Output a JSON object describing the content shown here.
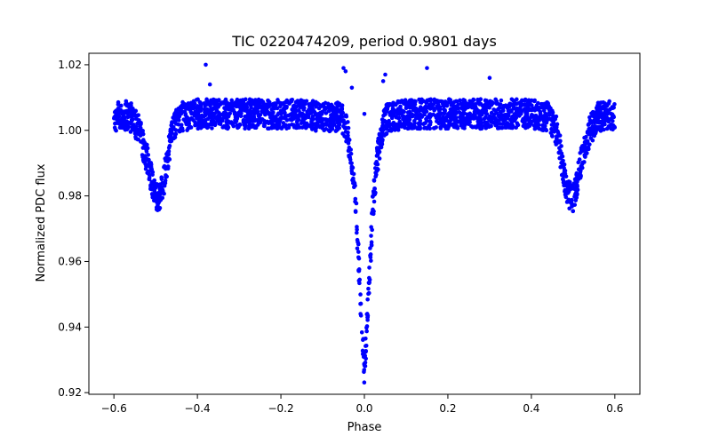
{
  "chart_data": {
    "type": "scatter",
    "title": "TIC 0220474209, period 0.9801 days",
    "xlabel": "Phase",
    "ylabel": "Normalized PDC flux",
    "xlim": [
      -0.66,
      0.66
    ],
    "ylim": [
      0.9195,
      1.0235
    ],
    "xticks": [
      -0.6,
      -0.4,
      -0.2,
      0.0,
      0.2,
      0.4,
      0.6
    ],
    "xtick_labels": [
      "−0.6",
      "−0.4",
      "−0.2",
      "0.0",
      "0.2",
      "0.4",
      "0.6"
    ],
    "yticks": [
      0.92,
      0.94,
      0.96,
      0.98,
      1.0,
      1.02
    ],
    "ytick_labels": [
      "0.92",
      "0.94",
      "0.96",
      "0.98",
      "1.00",
      "1.02"
    ],
    "grid": false,
    "legend": "none",
    "marker_color": "#0000ff",
    "series": [
      {
        "x": [
          -0.6,
          -0.58,
          -0.56,
          -0.54,
          -0.52,
          -0.51,
          -0.5,
          -0.49,
          -0.48,
          -0.47,
          -0.46,
          -0.44,
          -0.4,
          -0.35,
          -0.3,
          -0.25,
          -0.2,
          -0.15,
          -0.1,
          -0.06,
          -0.05,
          -0.04,
          -0.03,
          -0.02,
          -0.015,
          -0.01,
          -0.005,
          0.0,
          0.005,
          0.01,
          0.015,
          0.02,
          0.03,
          0.04,
          0.05,
          0.06,
          0.1,
          0.15,
          0.2,
          0.25,
          0.3,
          0.35,
          0.4,
          0.44,
          0.46,
          0.47,
          0.48,
          0.49,
          0.5,
          0.51,
          0.52,
          0.54,
          0.56,
          0.58,
          0.6
        ],
        "y": [
          1.004,
          1.005,
          1.004,
          1.0,
          0.991,
          0.985,
          0.98,
          0.979,
          0.985,
          0.993,
          1.0,
          1.004,
          1.005,
          1.005,
          1.005,
          1.005,
          1.005,
          1.005,
          1.004,
          1.004,
          1.003,
          0.999,
          0.99,
          0.976,
          0.963,
          0.95,
          0.937,
          0.926,
          0.937,
          0.95,
          0.963,
          0.976,
          0.99,
          0.999,
          1.003,
          1.004,
          1.005,
          1.005,
          1.005,
          1.005,
          1.005,
          1.005,
          1.005,
          1.004,
          1.0,
          0.993,
          0.985,
          0.98,
          0.979,
          0.985,
          0.991,
          1.0,
          1.004,
          1.005,
          1.004
        ]
      }
    ],
    "outliers": {
      "x": [
        -0.38,
        -0.37,
        -0.05,
        -0.045,
        -0.03,
        0.0,
        0.05,
        0.045,
        0.15,
        0.3
      ],
      "y": [
        1.02,
        1.014,
        1.019,
        1.018,
        1.013,
        1.005,
        1.017,
        1.015,
        1.019,
        1.016
      ]
    }
  }
}
